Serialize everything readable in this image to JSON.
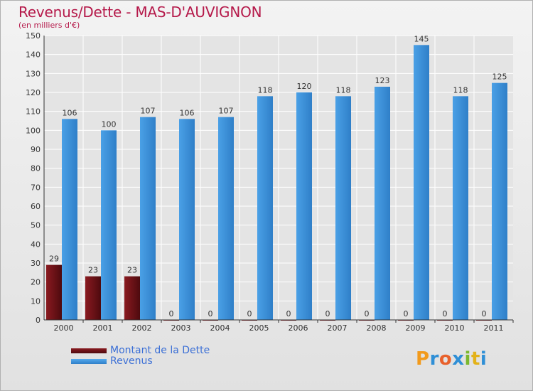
{
  "title": "Revenus/Dette - MAS-D'AUVIGNON",
  "subtitle": "(en milliers d'€)",
  "legend": [
    {
      "label": "Montant de la Dette",
      "color": "#6e0f14"
    },
    {
      "label": "Revenus",
      "color": "#3d8fd8"
    }
  ],
  "brand": {
    "letters": [
      "P",
      "r",
      "o",
      "x",
      "i",
      "t",
      "i"
    ],
    "colors": [
      "#f29a1c",
      "#2f8fd6",
      "#e8612c",
      "#2f8fd6",
      "#7cb82f",
      "#e3b21a",
      "#2f8fd6"
    ]
  },
  "chart_data": {
    "type": "bar",
    "categories": [
      "2000",
      "2001",
      "2002",
      "2003",
      "2004",
      "2005",
      "2006",
      "2007",
      "2008",
      "2009",
      "2010",
      "2011"
    ],
    "series": [
      {
        "name": "Montant de la Dette",
        "color": "#6e0f14",
        "values": [
          29,
          23,
          23,
          0,
          0,
          0,
          0,
          0,
          0,
          0,
          0,
          0
        ]
      },
      {
        "name": "Revenus",
        "color": "#3d8fd8",
        "values": [
          106,
          100,
          107,
          106,
          107,
          118,
          120,
          118,
          123,
          145,
          118,
          125
        ]
      }
    ],
    "ylim": [
      0,
      150
    ],
    "yticks": [
      0,
      10,
      20,
      30,
      40,
      50,
      60,
      70,
      80,
      90,
      100,
      110,
      120,
      130,
      140,
      150
    ],
    "grid": true,
    "legend_position": "bottom-left"
  }
}
